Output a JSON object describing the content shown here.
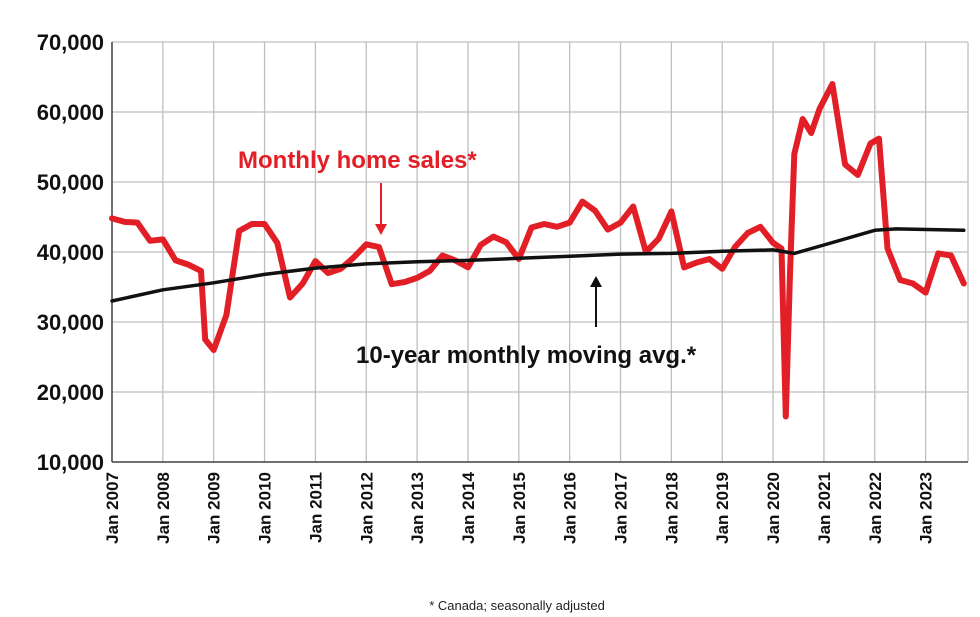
{
  "chart_data": {
    "type": "line",
    "title": "",
    "xlabel": "",
    "ylabel": "",
    "ylim": [
      10000,
      70000
    ],
    "y_ticks": [
      10000,
      20000,
      30000,
      40000,
      50000,
      60000,
      70000
    ],
    "y_tick_labels": [
      "10,000",
      "20,000",
      "30,000",
      "40,000",
      "50,000",
      "60,000",
      "70,000"
    ],
    "x_tick_labels": [
      "Jan 2007",
      "Jan 2008",
      "Jan 2009",
      "Jan 2010",
      "Jan 2011",
      "Jan 2012",
      "Jan 2013",
      "Jan 2014",
      "Jan 2015",
      "Jan 2016",
      "Jan 2017",
      "Jan 2018",
      "Jan 2019",
      "Jan 2020",
      "Jan 2021",
      "Jan 2022",
      "Jan 2023"
    ],
    "x_tick_values": [
      "2007-01",
      "2008-01",
      "2009-01",
      "2010-01",
      "2011-01",
      "2012-01",
      "2013-01",
      "2014-01",
      "2015-01",
      "2016-01",
      "2017-01",
      "2018-01",
      "2019-01",
      "2020-01",
      "2021-01",
      "2022-01",
      "2023-01"
    ],
    "xlim": [
      "2007-01",
      "2023-11"
    ],
    "grid": "vertical",
    "series": [
      {
        "name": "Monthly home sales*",
        "color": "#e21f26",
        "points": [
          [
            "2007-01",
            44800
          ],
          [
            "2007-04",
            44300
          ],
          [
            "2007-07",
            44200
          ],
          [
            "2007-10",
            41600
          ],
          [
            "2008-01",
            41800
          ],
          [
            "2008-04",
            38800
          ],
          [
            "2008-07",
            38200
          ],
          [
            "2008-10",
            37300
          ],
          [
            "2008-11",
            27500
          ],
          [
            "2009-01",
            26000
          ],
          [
            "2009-04",
            31000
          ],
          [
            "2009-07",
            43000
          ],
          [
            "2009-10",
            44000
          ],
          [
            "2010-01",
            44000
          ],
          [
            "2010-04",
            41300
          ],
          [
            "2010-07",
            33500
          ],
          [
            "2010-10",
            35500
          ],
          [
            "2011-01",
            38700
          ],
          [
            "2011-04",
            37000
          ],
          [
            "2011-07",
            37600
          ],
          [
            "2011-10",
            39200
          ],
          [
            "2012-01",
            41100
          ],
          [
            "2012-04",
            40700
          ],
          [
            "2012-07",
            35400
          ],
          [
            "2012-10",
            35700
          ],
          [
            "2013-01",
            36300
          ],
          [
            "2013-04",
            37300
          ],
          [
            "2013-07",
            39500
          ],
          [
            "2013-10",
            38800
          ],
          [
            "2014-01",
            37800
          ],
          [
            "2014-04",
            41000
          ],
          [
            "2014-07",
            42200
          ],
          [
            "2014-10",
            41400
          ],
          [
            "2015-01",
            39000
          ],
          [
            "2015-04",
            43500
          ],
          [
            "2015-07",
            44000
          ],
          [
            "2015-10",
            43600
          ],
          [
            "2016-01",
            44200
          ],
          [
            "2016-04",
            47200
          ],
          [
            "2016-07",
            45900
          ],
          [
            "2016-10",
            43200
          ],
          [
            "2017-01",
            44200
          ],
          [
            "2017-04",
            46500
          ],
          [
            "2017-07",
            40000
          ],
          [
            "2017-10",
            41900
          ],
          [
            "2018-01",
            45800
          ],
          [
            "2018-04",
            37800
          ],
          [
            "2018-07",
            38500
          ],
          [
            "2018-10",
            39000
          ],
          [
            "2019-01",
            37600
          ],
          [
            "2019-04",
            40700
          ],
          [
            "2019-07",
            42700
          ],
          [
            "2019-10",
            43600
          ],
          [
            "2020-01",
            41300
          ],
          [
            "2020-03",
            40500
          ],
          [
            "2020-04",
            16500
          ],
          [
            "2020-05",
            37000
          ],
          [
            "2020-06",
            54000
          ],
          [
            "2020-08",
            59000
          ],
          [
            "2020-10",
            57000
          ],
          [
            "2020-12",
            60500
          ],
          [
            "2021-03",
            64000
          ],
          [
            "2021-06",
            52500
          ],
          [
            "2021-09",
            51000
          ],
          [
            "2021-12",
            55500
          ],
          [
            "2022-02",
            56200
          ],
          [
            "2022-04",
            40500
          ],
          [
            "2022-07",
            36000
          ],
          [
            "2022-10",
            35500
          ],
          [
            "2023-01",
            34200
          ],
          [
            "2023-04",
            39800
          ],
          [
            "2023-07",
            39500
          ],
          [
            "2023-10",
            35500
          ]
        ]
      },
      {
        "name": "10-year monthly moving avg.*",
        "color": "#111111",
        "points": [
          [
            "2007-01",
            33000
          ],
          [
            "2008-01",
            34600
          ],
          [
            "2009-01",
            35600
          ],
          [
            "2010-01",
            36800
          ],
          [
            "2011-01",
            37700
          ],
          [
            "2012-01",
            38300
          ],
          [
            "2013-01",
            38600
          ],
          [
            "2014-01",
            38800
          ],
          [
            "2015-01",
            39100
          ],
          [
            "2016-01",
            39400
          ],
          [
            "2017-01",
            39700
          ],
          [
            "2018-01",
            39800
          ],
          [
            "2019-01",
            40100
          ],
          [
            "2020-01",
            40300
          ],
          [
            "2020-06",
            39800
          ],
          [
            "2021-01",
            41000
          ],
          [
            "2022-01",
            43100
          ],
          [
            "2022-06",
            43300
          ],
          [
            "2023-10",
            43100
          ]
        ]
      }
    ],
    "annotations": [
      {
        "text": "Monthly home sales*",
        "color": "#e21f26",
        "points_to": "2012-06"
      },
      {
        "text": "10-year monthly moving avg.*",
        "color": "#111111",
        "points_to": "2016-07"
      }
    ],
    "footnote": "* Canada; seasonally adjusted"
  }
}
